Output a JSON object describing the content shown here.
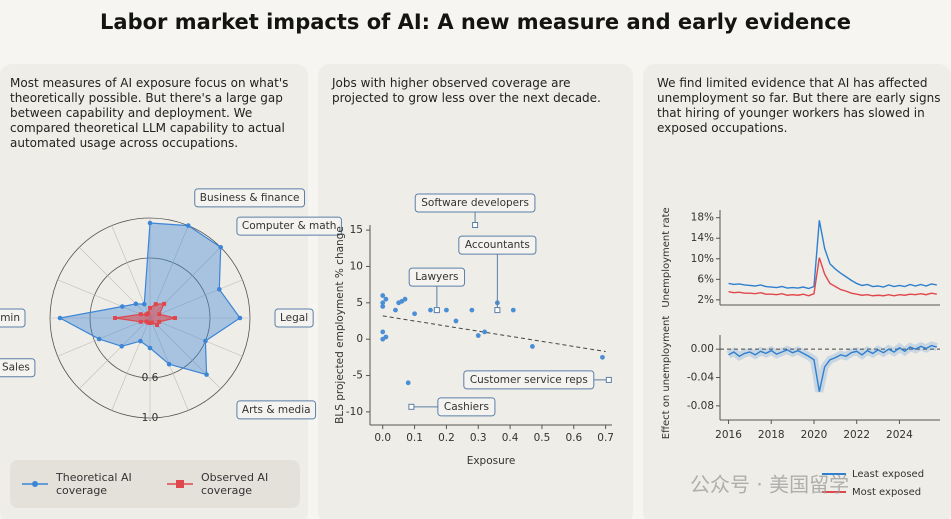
{
  "title": "Labor market impacts of AI: A new measure and early evidence",
  "panels": [
    "Most measures of AI exposure focus on what's theoretically possible. But there's a large gap between capability and deployment. We compared theoretical LLM capability to actual automated usage across occupations.",
    "Jobs with higher observed coverage are projected to grow less over the next decade.",
    "We find limited evidence that AI has affected unemployment so far. But there are early signs that hiring of younger workers has slowed in exposed occupations."
  ],
  "watermark": "公众号 · 美国留学",
  "chart_data": [
    {
      "type": "radar",
      "categories": [
        null,
        "Business & finance",
        "Computer & math",
        null,
        "Legal",
        null,
        "Arts & media",
        null,
        null,
        null,
        null,
        "Sales",
        "Office & admin",
        null,
        null,
        null
      ],
      "rlim": [
        0,
        1
      ],
      "rticks": [
        0.6,
        {
          "value": 1,
          "label": "1.0"
        }
      ],
      "series": [
        {
          "name": "Theoretical AI coverage",
          "color": "#3d85d6",
          "values": [
            0.95,
            1.0,
            1.0,
            0.75,
            0.9,
            0.6,
            0.8,
            0.5,
            0.3,
            0.25,
            0.4,
            0.55,
            0.9,
            0.3,
            0.2,
            0.15
          ]
        },
        {
          "name": "Observed AI coverage",
          "color": "#e0474c",
          "values": [
            0.1,
            0.15,
            0.2,
            0.1,
            0.25,
            0.1,
            0.1,
            0.05,
            0.05,
            0.05,
            0.05,
            0.1,
            0.35,
            0.1,
            0.05,
            0.05
          ]
        }
      ]
    },
    {
      "type": "scatter",
      "xlabel": "Exposure",
      "ylabel": "BLS projected employment % change",
      "xlim": [
        -0.04,
        0.72
      ],
      "ylim": [
        -11.8,
        15.7
      ],
      "xticks": [
        {
          "value": 0,
          "label": "0.0"
        },
        0.1,
        0.2,
        0.3,
        0.4,
        0.5,
        0.6,
        0.7
      ],
      "yticks": [
        15,
        10,
        5,
        0,
        -5,
        -10
      ],
      "color": "#4a8fd6",
      "x": [
        0.0,
        0.0,
        0.01,
        0.0,
        0.0,
        0.0,
        0.04,
        0.05,
        0.06,
        0.07,
        0.1,
        0.15,
        0.2,
        0.23,
        0.28,
        0.3,
        0.32,
        0.36,
        0.41,
        0.47,
        0.08,
        0.01,
        0.69
      ],
      "y": [
        6,
        5,
        5.5,
        4.5,
        1,
        0,
        4,
        5,
        5.2,
        5.5,
        3.5,
        4,
        4,
        2.5,
        4,
        0.5,
        1,
        5,
        4,
        -1,
        -6,
        0.3,
        -2.5
      ],
      "trend": {
        "x": [
          0,
          0.7
        ],
        "y": [
          3.2,
          -1.7
        ]
      },
      "annotations": [
        {
          "text": "Software developers",
          "x": 0.29,
          "y": 15.7
        },
        {
          "text": "Accountants",
          "x": 0.36,
          "y": 4
        },
        {
          "text": "Lawyers",
          "x": 0.17,
          "y": 4
        },
        {
          "text": "Customer service reps",
          "x": 0.71,
          "y": -5.6
        },
        {
          "text": "Cashiers",
          "x": 0.09,
          "y": -9.3
        }
      ]
    },
    {
      "type": "line",
      "ylabel": "Unemployment rate",
      "xlim": [
        2015.6,
        2025.9
      ],
      "ylim": [
        1,
        19.5
      ],
      "yticks": [
        {
          "value": 18,
          "label": "18%"
        },
        {
          "value": 14,
          "label": "14%"
        },
        {
          "value": 10,
          "label": "10%"
        },
        {
          "value": 6,
          "label": "6%"
        },
        {
          "value": 2,
          "label": "2%"
        }
      ],
      "x": [
        2016,
        2016.25,
        2016.5,
        2016.75,
        2017,
        2017.25,
        2017.5,
        2017.75,
        2018,
        2018.25,
        2018.5,
        2018.75,
        2019,
        2019.25,
        2019.5,
        2019.75,
        2020,
        2020.25,
        2020.5,
        2020.75,
        2021,
        2021.25,
        2021.5,
        2021.75,
        2022,
        2022.25,
        2022.5,
        2022.75,
        2023,
        2023.25,
        2023.5,
        2023.75,
        2024,
        2024.25,
        2024.5,
        2024.75,
        2025,
        2025.25,
        2025.5,
        2025.75
      ],
      "series": [
        {
          "name": "Least exposed",
          "color": "#2f7fd0",
          "values": [
            5.2,
            5.0,
            5.1,
            4.9,
            4.8,
            4.7,
            4.9,
            4.6,
            4.5,
            4.4,
            4.6,
            4.3,
            4.4,
            4.3,
            4.5,
            4.2,
            4.6,
            17.5,
            12.0,
            9.0,
            8.0,
            7.2,
            6.5,
            5.8,
            5.2,
            4.8,
            5.0,
            4.6,
            4.7,
            4.5,
            4.9,
            4.6,
            4.8,
            4.6,
            5.0,
            4.7,
            5.0,
            4.7,
            5.1,
            4.9
          ]
        },
        {
          "name": "Most exposed",
          "color": "#e0474c",
          "values": [
            3.6,
            3.4,
            3.5,
            3.3,
            3.3,
            3.2,
            3.4,
            3.1,
            3.1,
            3.0,
            3.2,
            2.9,
            3.0,
            2.9,
            3.1,
            2.8,
            3.2,
            10.2,
            7.0,
            5.2,
            4.6,
            4.0,
            3.7,
            3.3,
            3.1,
            2.9,
            3.0,
            2.8,
            2.9,
            2.8,
            3.0,
            2.8,
            3.0,
            2.9,
            3.1,
            3.0,
            3.2,
            3.0,
            3.3,
            3.1
          ]
        }
      ]
    },
    {
      "type": "line",
      "ylabel": "Effect on unemployment",
      "xlim": [
        2015.6,
        2025.9
      ],
      "ylim": [
        -0.1,
        0.02
      ],
      "yticks": [
        {
          "value": 0,
          "label": "0.00"
        },
        {
          "value": -0.04,
          "label": "-0.04"
        },
        {
          "value": -0.08,
          "label": "-0.08"
        }
      ],
      "xticks": [
        2016,
        2018,
        2020,
        2022,
        2024
      ],
      "x": [
        2016,
        2016.25,
        2016.5,
        2016.75,
        2017,
        2017.25,
        2017.5,
        2017.75,
        2018,
        2018.25,
        2018.5,
        2018.75,
        2019,
        2019.25,
        2019.5,
        2019.75,
        2020,
        2020.25,
        2020.5,
        2020.75,
        2021,
        2021.25,
        2021.5,
        2021.75,
        2022,
        2022.25,
        2022.5,
        2022.75,
        2023,
        2023.25,
        2023.5,
        2023.75,
        2024,
        2024.25,
        2024.5,
        2024.75,
        2025,
        2025.25,
        2025.5,
        2025.75
      ],
      "series": [
        {
          "color": "#2f7fd0",
          "values": [
            -0.008,
            -0.004,
            -0.01,
            -0.006,
            -0.004,
            -0.008,
            -0.003,
            -0.006,
            -0.002,
            -0.007,
            -0.004,
            -0.001,
            -0.005,
            -0.002,
            -0.006,
            -0.01,
            -0.015,
            -0.06,
            -0.025,
            -0.015,
            -0.012,
            -0.008,
            -0.01,
            -0.005,
            -0.003,
            -0.008,
            -0.002,
            -0.006,
            -0.001,
            -0.005,
            0.0,
            -0.004,
            0.002,
            -0.003,
            0.003,
            0.0,
            0.004,
            0.001,
            0.005,
            0.003
          ]
        }
      ]
    }
  ]
}
